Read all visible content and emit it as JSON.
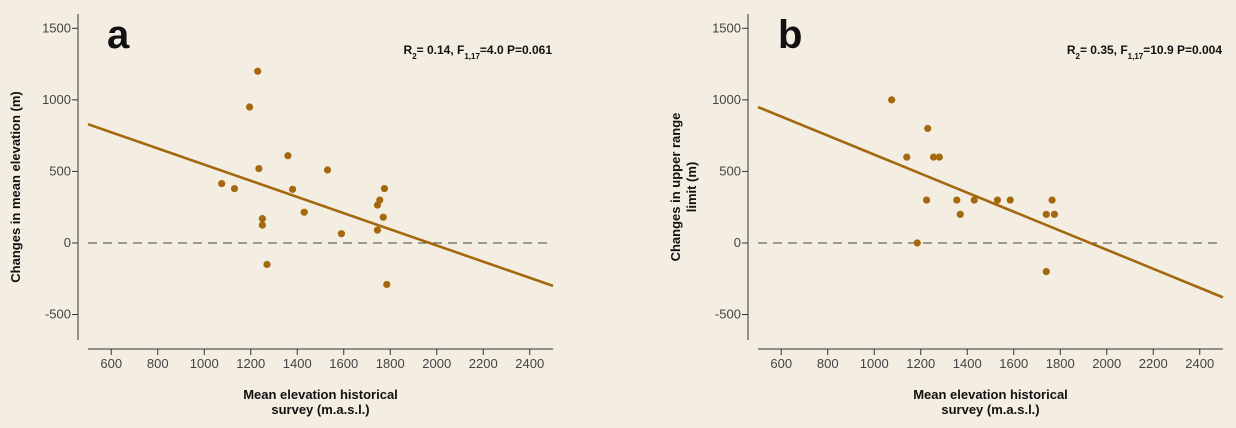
{
  "colors": {
    "background": "#f3ede2",
    "marker": "#a4690f",
    "fit_line": "#a4690f",
    "axis": "#333333",
    "zero_line": "#444444"
  },
  "chart_data": [
    {
      "type": "scatter",
      "panel_label": "a",
      "xlabel": [
        "Mean elevation historical",
        "survey (m.a.s.l.)"
      ],
      "ylabel": [
        "Changes in mean elevation (m)"
      ],
      "stat_parts": [
        "R",
        "2",
        "= 0.14, F",
        "1,17",
        "=4.0 P=0.061"
      ],
      "xlim": [
        500,
        2500
      ],
      "ylim": [
        -650,
        1600
      ],
      "xticks": [
        600,
        800,
        1000,
        1200,
        1400,
        1600,
        1800,
        2000,
        2200,
        2400
      ],
      "yticks": [
        -500,
        0,
        500,
        1000,
        1500
      ],
      "reference_line_y": 0,
      "fit": {
        "x": [
          500,
          2500
        ],
        "y": [
          830,
          -300
        ]
      },
      "points": [
        {
          "x": 1075,
          "y": 415
        },
        {
          "x": 1130,
          "y": 380
        },
        {
          "x": 1195,
          "y": 950
        },
        {
          "x": 1230,
          "y": 1200
        },
        {
          "x": 1235,
          "y": 520
        },
        {
          "x": 1250,
          "y": 170
        },
        {
          "x": 1250,
          "y": 125
        },
        {
          "x": 1270,
          "y": -150
        },
        {
          "x": 1360,
          "y": 610
        },
        {
          "x": 1380,
          "y": 375
        },
        {
          "x": 1430,
          "y": 215
        },
        {
          "x": 1530,
          "y": 510
        },
        {
          "x": 1590,
          "y": 65
        },
        {
          "x": 1745,
          "y": 265
        },
        {
          "x": 1755,
          "y": 300
        },
        {
          "x": 1745,
          "y": 90
        },
        {
          "x": 1770,
          "y": 180
        },
        {
          "x": 1775,
          "y": 380
        },
        {
          "x": 1785,
          "y": -290
        }
      ]
    },
    {
      "type": "scatter",
      "panel_label": "b",
      "xlabel": [
        "Mean elevation historical",
        "survey (m.a.s.l.)"
      ],
      "ylabel": [
        "Changes in upper range",
        "limit (m)"
      ],
      "stat_parts": [
        "R",
        "2",
        "= 0.35, F",
        "1,17",
        "=10.9 P=0.004"
      ],
      "xlim": [
        500,
        2500
      ],
      "ylim": [
        -650,
        1600
      ],
      "xticks": [
        600,
        800,
        1000,
        1200,
        1400,
        1600,
        1800,
        2000,
        2200,
        2400
      ],
      "yticks": [
        -500,
        0,
        500,
        1000,
        1500
      ],
      "reference_line_y": 0,
      "fit": {
        "x": [
          500,
          2500
        ],
        "y": [
          950,
          -380
        ]
      },
      "points": [
        {
          "x": 1075,
          "y": 1000
        },
        {
          "x": 1140,
          "y": 600
        },
        {
          "x": 1185,
          "y": 0
        },
        {
          "x": 1225,
          "y": 300
        },
        {
          "x": 1230,
          "y": 800
        },
        {
          "x": 1255,
          "y": 600
        },
        {
          "x": 1280,
          "y": 600
        },
        {
          "x": 1355,
          "y": 300
        },
        {
          "x": 1370,
          "y": 200
        },
        {
          "x": 1430,
          "y": 300
        },
        {
          "x": 1530,
          "y": 300
        },
        {
          "x": 1585,
          "y": 300
        },
        {
          "x": 1740,
          "y": 200
        },
        {
          "x": 1740,
          "y": -200
        },
        {
          "x": 1765,
          "y": 300
        },
        {
          "x": 1775,
          "y": 200
        }
      ]
    }
  ]
}
